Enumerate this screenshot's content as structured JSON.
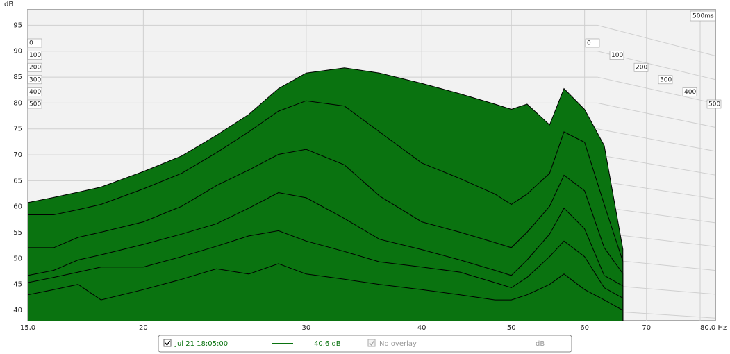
{
  "chart_data": {
    "type": "waterfall",
    "ylabel": "dB",
    "xscale": "log",
    "xlim": [
      15,
      80
    ],
    "ylim": [
      38,
      98
    ],
    "xticks": [
      {
        "value": 15,
        "label": "15,0"
      },
      20,
      30,
      40,
      50,
      60,
      70,
      {
        "value": 80,
        "label": "80,0 Hz"
      }
    ],
    "yticks": [
      40,
      45,
      50,
      55,
      60,
      65,
      70,
      75,
      80,
      85,
      90,
      95
    ],
    "zlim": [
      0,
      500
    ],
    "zticks": [
      0,
      100,
      200,
      300,
      400,
      500
    ],
    "zlabel": "500ms",
    "grid": true,
    "color": "#0a7310",
    "x": [
      15,
      16,
      17,
      18,
      20,
      22,
      24,
      26,
      28,
      30,
      33,
      36,
      40,
      44,
      48,
      50,
      52,
      55,
      57,
      60,
      63,
      66
    ],
    "slices": [
      {
        "time": 0,
        "values": [
          49,
          50,
          51,
          52,
          55,
          58,
          62,
          66,
          71,
          74,
          75,
          74,
          72,
          70,
          68,
          67,
          68,
          64,
          71,
          67,
          60,
          40
        ]
      },
      {
        "time": 100,
        "values": [
          49,
          49,
          50,
          51,
          54,
          57,
          61,
          65,
          69,
          71,
          70,
          65,
          59,
          56,
          53,
          51,
          53,
          57,
          65,
          63,
          51,
          40
        ]
      },
      {
        "time": 200,
        "values": [
          45,
          45,
          47,
          48,
          50,
          53,
          57,
          60,
          63,
          64,
          61,
          55,
          50,
          48,
          46,
          45,
          48,
          53,
          59,
          56,
          45,
          40
        ]
      },
      {
        "time": 300,
        "values": [
          42,
          43,
          45,
          46,
          48,
          50,
          52,
          55,
          58,
          57,
          53,
          49,
          47,
          45,
          43,
          42,
          45,
          50,
          55,
          51,
          42,
          40
        ]
      },
      {
        "time": 400,
        "values": [
          43,
          44,
          45,
          46,
          46,
          48,
          50,
          52,
          53,
          51,
          49,
          47,
          46,
          45,
          43,
          42,
          44,
          48,
          51,
          48,
          42,
          40
        ]
      },
      {
        "time": 500,
        "values": [
          43,
          44,
          45,
          42,
          44,
          46,
          48,
          47,
          49,
          47,
          46,
          45,
          44,
          43,
          42,
          42,
          43,
          45,
          47,
          44,
          42,
          40
        ]
      }
    ],
    "legend": {
      "name": "Jul 21 18:05:00",
      "checked": true,
      "color": "#0a7310",
      "level": "40,6 dB",
      "overlay": "No overlay",
      "overlay_checked": true,
      "unit": "dB"
    }
  }
}
